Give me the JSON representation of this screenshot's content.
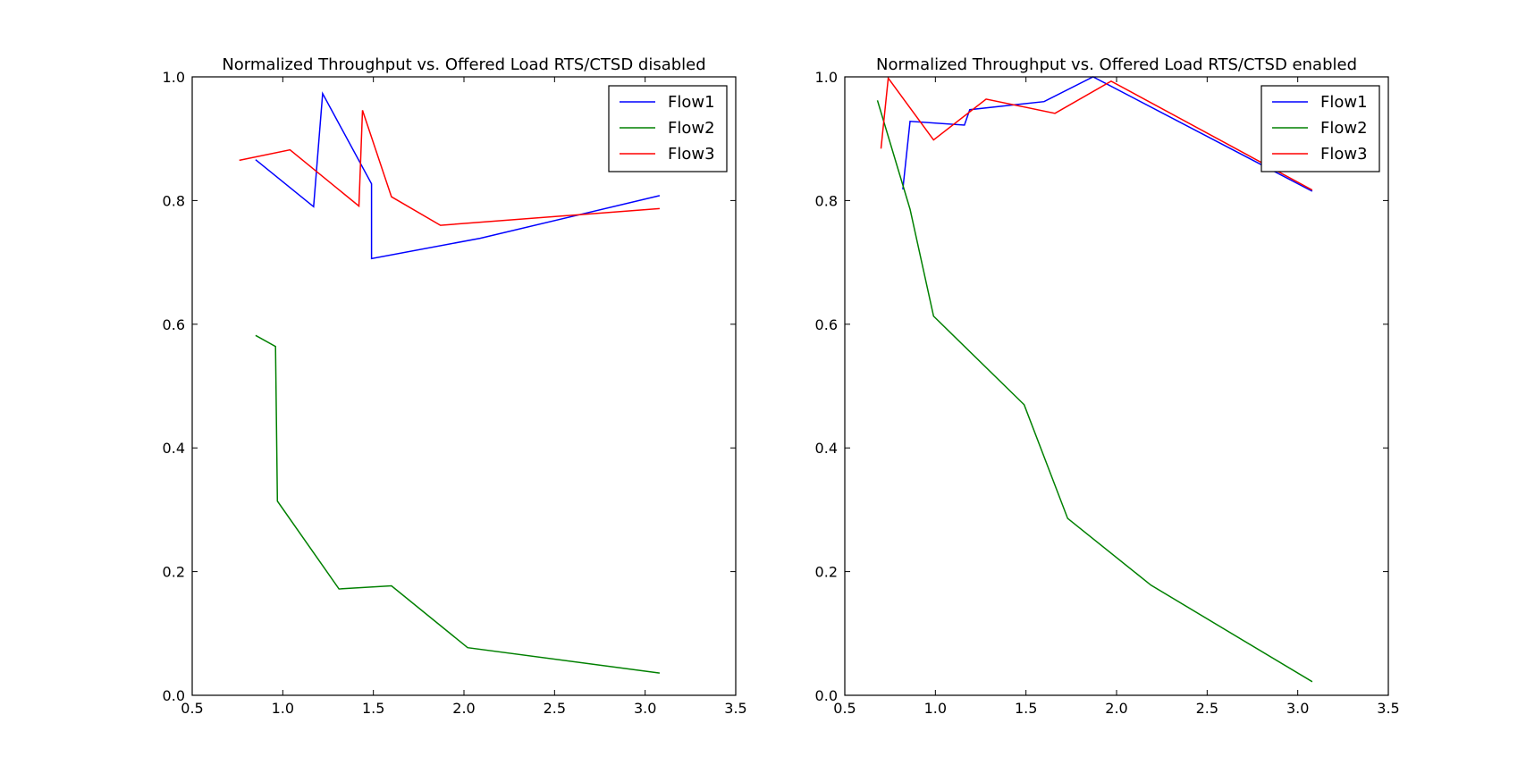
{
  "chart_data": [
    {
      "type": "line",
      "title": "Normalized Throughput vs. Offered Load RTS/CTSD disabled",
      "xlabel": "",
      "ylabel": "",
      "xlim": [
        0.5,
        3.5
      ],
      "ylim": [
        0.0,
        1.0
      ],
      "xticks": [
        "0.5",
        "1.0",
        "1.5",
        "2.0",
        "2.5",
        "3.0",
        "3.5"
      ],
      "yticks": [
        "0.0",
        "0.2",
        "0.4",
        "0.6",
        "0.8",
        "1.0"
      ],
      "grid": false,
      "legend_position": "upper right",
      "series": [
        {
          "name": "Flow1",
          "color": "#0000ff",
          "points": [
            [
              0.85,
              0.866
            ],
            [
              1.17,
              0.79
            ],
            [
              1.22,
              0.973
            ],
            [
              1.49,
              0.827
            ],
            [
              1.49,
              0.706
            ],
            [
              2.09,
              0.739
            ],
            [
              3.08,
              0.808
            ]
          ]
        },
        {
          "name": "Flow2",
          "color": "#008000",
          "points": [
            [
              0.85,
              0.582
            ],
            [
              0.96,
              0.564
            ],
            [
              0.97,
              0.314
            ],
            [
              1.31,
              0.172
            ],
            [
              1.6,
              0.177
            ],
            [
              2.02,
              0.077
            ],
            [
              3.08,
              0.036
            ]
          ]
        },
        {
          "name": "Flow3",
          "color": "#ff0000",
          "points": [
            [
              0.76,
              0.865
            ],
            [
              1.04,
              0.882
            ],
            [
              1.42,
              0.791
            ],
            [
              1.44,
              0.946
            ],
            [
              1.6,
              0.806
            ],
            [
              1.87,
              0.76
            ],
            [
              3.08,
              0.787
            ]
          ]
        }
      ]
    },
    {
      "type": "line",
      "title": "Normalized Throughput vs. Offered Load RTS/CTSD enabled",
      "xlabel": "",
      "ylabel": "",
      "xlim": [
        0.5,
        3.5
      ],
      "ylim": [
        0.0,
        1.0
      ],
      "xticks": [
        "0.5",
        "1.0",
        "1.5",
        "2.0",
        "2.5",
        "3.0",
        "3.5"
      ],
      "yticks": [
        "0.0",
        "0.2",
        "0.4",
        "0.6",
        "0.8",
        "1.0"
      ],
      "grid": false,
      "legend_position": "upper right",
      "series": [
        {
          "name": "Flow1",
          "color": "#0000ff",
          "points": [
            [
              0.82,
              0.818
            ],
            [
              0.86,
              0.928
            ],
            [
              1.16,
              0.922
            ],
            [
              1.19,
              0.947
            ],
            [
              1.6,
              0.96
            ],
            [
              1.87,
              1.0
            ],
            [
              3.08,
              0.815
            ]
          ]
        },
        {
          "name": "Flow2",
          "color": "#008000",
          "points": [
            [
              0.68,
              0.962
            ],
            [
              0.86,
              0.786
            ],
            [
              0.99,
              0.613
            ],
            [
              1.49,
              0.47
            ],
            [
              1.73,
              0.286
            ],
            [
              2.19,
              0.178
            ],
            [
              3.08,
              0.022
            ]
          ]
        },
        {
          "name": "Flow3",
          "color": "#ff0000",
          "points": [
            [
              0.7,
              0.884
            ],
            [
              0.74,
              0.998
            ],
            [
              0.99,
              0.898
            ],
            [
              1.28,
              0.964
            ],
            [
              1.66,
              0.941
            ],
            [
              1.97,
              0.993
            ],
            [
              3.08,
              0.817
            ]
          ]
        }
      ]
    }
  ]
}
